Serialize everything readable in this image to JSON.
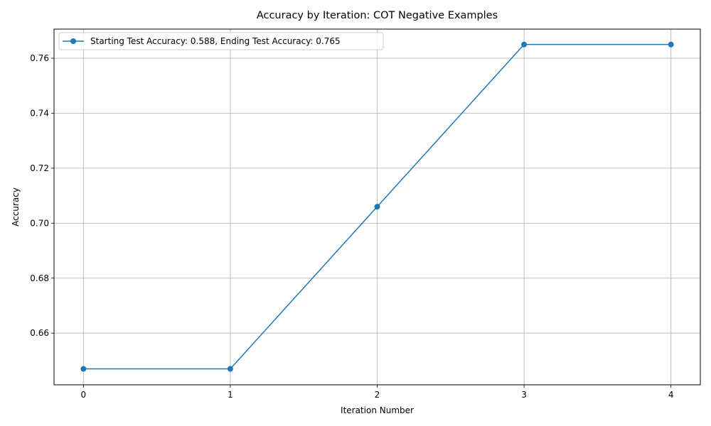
{
  "chart_data": {
    "type": "line",
    "title": "Accuracy by Iteration: COT Negative Examples",
    "xlabel": "Iteration Number",
    "ylabel": "Accuracy",
    "x": [
      0,
      1,
      2,
      3,
      4
    ],
    "series": [
      {
        "name": "Starting Test Accuracy: 0.588, Ending Test Accuracy: 0.765",
        "values": [
          0.647,
          0.647,
          0.706,
          0.765,
          0.765
        ],
        "color": "#1f77b4",
        "marker": "circle"
      }
    ],
    "xlim": [
      -0.2,
      4.2
    ],
    "ylim": [
      0.6412,
      0.7706
    ],
    "xticks": [
      "0",
      "1",
      "2",
      "3",
      "4"
    ],
    "yticks": [
      "0.66",
      "0.68",
      "0.70",
      "0.72",
      "0.74",
      "0.76"
    ],
    "grid": true,
    "legend_position": "top-left"
  }
}
